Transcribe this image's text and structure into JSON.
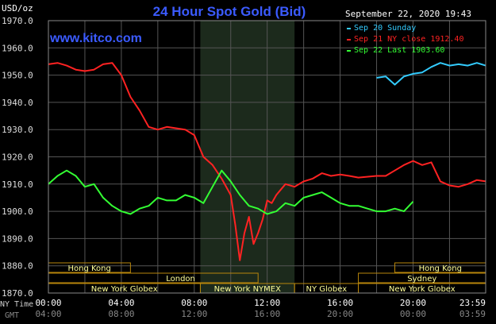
{
  "header": {
    "title": "24 Hour Spot Gold (Bid)",
    "unit": "USD/oz",
    "datetime": "September 22, 2020 19:43",
    "watermark": "www.kitco.com"
  },
  "legend": [
    {
      "text": "Sep 20 Sunday",
      "color": "#33ccff"
    },
    {
      "text": "Sep 21 NY close 1912.40",
      "color": "#ff2222"
    },
    {
      "text": "Sep 22 Last 1903.60",
      "color": "#33ff33"
    }
  ],
  "axis": {
    "y_ticks": [
      "1970.0",
      "1960.0",
      "1950.0",
      "1940.0",
      "1930.0",
      "1920.0",
      "1910.0",
      "1900.0",
      "1890.0",
      "1880.0",
      "1870.0"
    ],
    "ny_label": "NY Time",
    "gmt_label": "GMT",
    "ny_ticks": [
      "00:00",
      "04:00",
      "08:00",
      "12:00",
      "16:00",
      "20:00",
      "23:59"
    ],
    "gmt_ticks": [
      "04:00",
      "08:00",
      "12:00",
      "16:00",
      "20:00",
      "00:00",
      "03:59"
    ]
  },
  "sessions": {
    "hong_kong_1": "Hong Kong",
    "hong_kong_2": "Hong Kong",
    "london": "London",
    "sydney": "Sydney",
    "ny_globex_1": "New York Globex",
    "ny_nymex": "New York NYMEX",
    "ny_globex_2": "NY Globex",
    "ny_globex_3": "New York Globex"
  },
  "colors": {
    "background": "#000000",
    "grid": "#555555",
    "nymex_shade": "#1c2a1c",
    "title": "#3b5bff",
    "session_fill": "#ffff99",
    "session_border": "#b8860b"
  },
  "chart_data": {
    "type": "line",
    "title": "24 Hour Spot Gold (Bid)",
    "ylabel": "USD/oz",
    "xlabel": "NY Time",
    "ylim": [
      1870,
      1970
    ],
    "xlim": [
      "00:00",
      "23:59"
    ],
    "grid": true,
    "legend_position": "top-right",
    "series": [
      {
        "name": "Sep 20 Sunday",
        "color": "#33ccff",
        "x": [
          "18:00",
          "18:30",
          "19:00",
          "19:30",
          "20:00",
          "20:30",
          "21:00",
          "21:30",
          "22:00",
          "22:30",
          "23:00",
          "23:30",
          "23:59"
        ],
        "values": [
          1949.0,
          1949.5,
          1946.5,
          1949.5,
          1950.5,
          1951.0,
          1953.0,
          1954.5,
          1953.5,
          1954.0,
          1953.5,
          1954.5,
          1953.5
        ]
      },
      {
        "name": "Sep 21 NY close 1912.40",
        "color": "#ff2222",
        "x": [
          "00:00",
          "00:30",
          "01:00",
          "01:30",
          "02:00",
          "02:30",
          "03:00",
          "03:30",
          "04:00",
          "04:30",
          "05:00",
          "05:30",
          "06:00",
          "06:30",
          "07:00",
          "07:30",
          "08:00",
          "08:30",
          "09:00",
          "09:30",
          "10:00",
          "10:15",
          "10:30",
          "10:45",
          "11:00",
          "11:15",
          "11:30",
          "11:45",
          "12:00",
          "12:15",
          "12:30",
          "12:45",
          "13:00",
          "13:30",
          "14:00",
          "14:30",
          "15:00",
          "15:30",
          "16:00",
          "16:30",
          "17:00",
          "18:00",
          "18:30",
          "19:00",
          "19:30",
          "20:00",
          "20:30",
          "21:00",
          "21:30",
          "22:00",
          "22:30",
          "23:00",
          "23:30",
          "23:59"
        ],
        "values": [
          1954.0,
          1954.5,
          1953.5,
          1952.0,
          1951.5,
          1952.0,
          1954.0,
          1954.5,
          1950.0,
          1942.0,
          1937.0,
          1931.0,
          1930.0,
          1931.0,
          1930.5,
          1930.0,
          1928.0,
          1920.0,
          1917.0,
          1912.0,
          1906.0,
          1895.0,
          1882.0,
          1892.0,
          1898.0,
          1888.0,
          1892.0,
          1897.0,
          1904.0,
          1903.0,
          1906.0,
          1908.0,
          1910.0,
          1909.0,
          1911.0,
          1912.0,
          1914.0,
          1913.0,
          1913.5,
          1913.0,
          1912.4,
          1913.0,
          1913.0,
          1915.0,
          1917.0,
          1918.5,
          1917.0,
          1918.0,
          1911.0,
          1909.5,
          1909.0,
          1910.0,
          1911.5,
          1911.0
        ]
      },
      {
        "name": "Sep 22 Last 1903.60",
        "color": "#33ff33",
        "x": [
          "00:00",
          "00:30",
          "01:00",
          "01:30",
          "02:00",
          "02:30",
          "03:00",
          "03:30",
          "04:00",
          "04:30",
          "05:00",
          "05:30",
          "06:00",
          "06:30",
          "07:00",
          "07:30",
          "08:00",
          "08:30",
          "09:00",
          "09:30",
          "10:00",
          "10:30",
          "11:00",
          "11:30",
          "12:00",
          "12:30",
          "13:00",
          "13:30",
          "14:00",
          "14:30",
          "15:00",
          "15:30",
          "16:00",
          "16:30",
          "17:00",
          "17:30",
          "18:00",
          "18:30",
          "19:00",
          "19:30",
          "20:00"
        ],
        "values": [
          1910.0,
          1913.0,
          1915.0,
          1913.0,
          1909.0,
          1910.0,
          1905.0,
          1902.0,
          1900.0,
          1899.0,
          1901.0,
          1902.0,
          1905.0,
          1904.0,
          1904.0,
          1906.0,
          1905.0,
          1903.0,
          1909.0,
          1915.0,
          1911.0,
          1906.0,
          1902.0,
          1901.0,
          1899.0,
          1900.0,
          1903.0,
          1902.0,
          1905.0,
          1906.0,
          1907.0,
          1905.0,
          1903.0,
          1902.0,
          1902.0,
          1901.0,
          1900.0,
          1900.0,
          1901.0,
          1900.0,
          1903.6
        ]
      }
    ]
  }
}
